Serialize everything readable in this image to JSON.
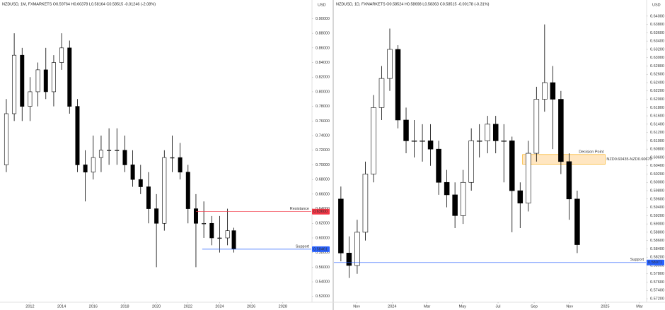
{
  "chart_data": [
    {
      "type": "candlestick",
      "title": "NZDUSD, 1M, FXMARKETS O0.59764 H0.60378 L0.58164 C0.58515 -0.01246 (-2.08%)",
      "y_label": "USD",
      "x": [
        2010.5,
        2011,
        2011.5,
        2012,
        2012.5,
        2013,
        2013.5,
        2014,
        2014.5,
        2015,
        2015.5,
        2016,
        2016.5,
        2017,
        2017.5,
        2018,
        2018.5,
        2019,
        2019.5,
        2020,
        2020.5,
        2021,
        2021.5,
        2022,
        2022.5,
        2023,
        2023.5,
        2024,
        2024.5,
        2024.9
      ],
      "open": [
        0.7,
        0.77,
        0.85,
        0.78,
        0.8,
        0.83,
        0.8,
        0.84,
        0.86,
        0.78,
        0.7,
        0.69,
        0.71,
        0.72,
        0.72,
        0.72,
        0.7,
        0.68,
        0.67,
        0.64,
        0.62,
        0.71,
        0.71,
        0.69,
        0.64,
        0.62,
        0.62,
        0.6,
        0.6,
        0.61
      ],
      "high": [
        0.79,
        0.88,
        0.86,
        0.82,
        0.84,
        0.86,
        0.85,
        0.88,
        0.87,
        0.79,
        0.72,
        0.74,
        0.74,
        0.75,
        0.75,
        0.74,
        0.72,
        0.7,
        0.69,
        0.66,
        0.72,
        0.74,
        0.73,
        0.7,
        0.66,
        0.65,
        0.63,
        0.63,
        0.64,
        0.614
      ],
      "low": [
        0.69,
        0.76,
        0.76,
        0.76,
        0.78,
        0.79,
        0.78,
        0.83,
        0.77,
        0.69,
        0.65,
        0.68,
        0.69,
        0.7,
        0.7,
        0.69,
        0.67,
        0.66,
        0.62,
        0.56,
        0.61,
        0.69,
        0.68,
        0.62,
        0.56,
        0.6,
        0.59,
        0.58,
        0.59,
        0.58
      ],
      "close": [
        0.77,
        0.85,
        0.78,
        0.8,
        0.83,
        0.8,
        0.84,
        0.86,
        0.78,
        0.7,
        0.69,
        0.71,
        0.72,
        0.72,
        0.72,
        0.7,
        0.68,
        0.67,
        0.64,
        0.62,
        0.71,
        0.71,
        0.69,
        0.64,
        0.62,
        0.62,
        0.6,
        0.6,
        0.61,
        0.585
      ],
      "up_color": "#ffffff",
      "down_color": "#000000",
      "wick_color": "#000000",
      "grid": false,
      "xlim": [
        2010.1,
        2029.8
      ],
      "ylim": [
        0.514,
        0.912
      ],
      "xticks": [
        2012,
        2014,
        2016,
        2018,
        2020,
        2022,
        2024,
        2026,
        2028
      ],
      "yticks": [
        {
          "value": 0.52,
          "label": "0.52000"
        },
        {
          "value": 0.54,
          "label": "0.54000"
        },
        {
          "value": 0.56,
          "label": "0.56000"
        },
        {
          "value": 0.58,
          "label": "0.58000"
        },
        {
          "value": 0.6,
          "label": "0.60000"
        },
        {
          "value": 0.62,
          "label": "0.62000"
        },
        {
          "value": 0.64,
          "label": "0.64000"
        },
        {
          "value": 0.66,
          "label": "0.66000"
        },
        {
          "value": 0.68,
          "label": "0.68000"
        },
        {
          "value": 0.7,
          "label": "0.70000"
        },
        {
          "value": 0.72,
          "label": "0.72000"
        },
        {
          "value": 0.74,
          "label": "0.74000"
        },
        {
          "value": 0.76,
          "label": "0.76000"
        },
        {
          "value": 0.78,
          "label": "0.78000"
        },
        {
          "value": 0.8,
          "label": "0.80000"
        },
        {
          "value": 0.82,
          "label": "0.82000"
        },
        {
          "value": 0.84,
          "label": "0.84000"
        },
        {
          "value": 0.86,
          "label": "0.86000"
        },
        {
          "value": 0.88,
          "label": "0.88000"
        },
        {
          "value": 0.9,
          "label": "0.90000"
        }
      ],
      "hlines": [
        {
          "name": "Resistance",
          "value": 0.636,
          "value_label": "0.63600",
          "color": "#f23645",
          "x_start": 2022.5
        },
        {
          "name": "Support",
          "value": 0.58461,
          "value_label": "0.58461",
          "color": "#2962ff",
          "x_start": 2022.9
        }
      ]
    },
    {
      "type": "candlestick",
      "title": "NZDUSD, 1D, FXMARKETS O0.58524 H0.58698 L0.58363 C0.58515 -0.00178 (-0.31%)",
      "y_label": "USD",
      "x": [
        4,
        18,
        32,
        46,
        60,
        74,
        88,
        102,
        116,
        130,
        144,
        158,
        172,
        186,
        200,
        214,
        228,
        242,
        256,
        270,
        284,
        298,
        312,
        326,
        340,
        354,
        368,
        382,
        396,
        410
      ],
      "open": [
        0.596,
        0.583,
        0.58,
        0.588,
        0.602,
        0.618,
        0.625,
        0.632,
        0.615,
        0.61,
        0.61,
        0.61,
        0.608,
        0.6,
        0.597,
        0.592,
        0.6,
        0.61,
        0.61,
        0.614,
        0.61,
        0.61,
        0.598,
        0.595,
        0.607,
        0.62,
        0.624,
        0.62,
        0.605,
        0.596
      ],
      "high": [
        0.599,
        0.587,
        0.591,
        0.605,
        0.621,
        0.628,
        0.637,
        0.633,
        0.618,
        0.615,
        0.614,
        0.614,
        0.61,
        0.603,
        0.6,
        0.603,
        0.613,
        0.614,
        0.616,
        0.616,
        0.614,
        0.611,
        0.6,
        0.61,
        0.623,
        0.638,
        0.628,
        0.622,
        0.607,
        0.598
      ],
      "low": [
        0.581,
        0.577,
        0.578,
        0.586,
        0.6,
        0.615,
        0.622,
        0.613,
        0.607,
        0.606,
        0.605,
        0.604,
        0.597,
        0.594,
        0.589,
        0.59,
        0.598,
        0.606,
        0.607,
        0.607,
        0.6,
        0.588,
        0.589,
        0.593,
        0.605,
        0.617,
        0.608,
        0.602,
        0.591,
        0.583
      ],
      "close": [
        0.583,
        0.58,
        0.588,
        0.602,
        0.618,
        0.625,
        0.632,
        0.615,
        0.61,
        0.61,
        0.61,
        0.608,
        0.6,
        0.597,
        0.592,
        0.6,
        0.61,
        0.61,
        0.614,
        0.61,
        0.61,
        0.598,
        0.595,
        0.607,
        0.62,
        0.624,
        0.62,
        0.605,
        0.596,
        0.585
      ],
      "up_color": "#ffffff",
      "down_color": "#000000",
      "wick_color": "#000000",
      "grid": false,
      "xlim": [
        -8,
        528
      ],
      "ylim": [
        0.5715,
        0.6415
      ],
      "xticks": [
        {
          "value": 31,
          "label": "Nov"
        },
        {
          "value": 92,
          "label": "2024"
        },
        {
          "value": 152,
          "label": "Mar"
        },
        {
          "value": 213,
          "label": "May"
        },
        {
          "value": 274,
          "label": "Jul"
        },
        {
          "value": 336,
          "label": "Sep"
        },
        {
          "value": 397,
          "label": "Nov"
        },
        {
          "value": 458,
          "label": "2025"
        },
        {
          "value": 517,
          "label": "Mar"
        }
      ],
      "yticks": [
        {
          "value": 0.572,
          "label": "0.57200"
        },
        {
          "value": 0.574,
          "label": "0.57400"
        },
        {
          "value": 0.576,
          "label": "0.57600"
        },
        {
          "value": 0.578,
          "label": "0.57800"
        },
        {
          "value": 0.58,
          "label": "0.58000"
        },
        {
          "value": 0.582,
          "label": "0.58200"
        },
        {
          "value": 0.584,
          "label": "0.58400"
        },
        {
          "value": 0.586,
          "label": "0.58600"
        },
        {
          "value": 0.588,
          "label": "0.58800"
        },
        {
          "value": 0.59,
          "label": "0.59000"
        },
        {
          "value": 0.592,
          "label": "0.59200"
        },
        {
          "value": 0.594,
          "label": "0.59400"
        },
        {
          "value": 0.596,
          "label": "0.59600"
        },
        {
          "value": 0.598,
          "label": "0.59800"
        },
        {
          "value": 0.6,
          "label": "0.60000"
        },
        {
          "value": 0.602,
          "label": "0.60200"
        },
        {
          "value": 0.604,
          "label": "0.60400"
        },
        {
          "value": 0.606,
          "label": "0.60600"
        },
        {
          "value": 0.608,
          "label": "0.60800"
        },
        {
          "value": 0.61,
          "label": "0.61000"
        },
        {
          "value": 0.612,
          "label": "0.61200"
        },
        {
          "value": 0.614,
          "label": "0.61400"
        },
        {
          "value": 0.616,
          "label": "0.61600"
        },
        {
          "value": 0.618,
          "label": "0.61800"
        },
        {
          "value": 0.62,
          "label": "0.62000"
        },
        {
          "value": 0.622,
          "label": "0.62200"
        },
        {
          "value": 0.624,
          "label": "0.62400"
        },
        {
          "value": 0.626,
          "label": "0.62600"
        },
        {
          "value": 0.628,
          "label": "0.62800"
        },
        {
          "value": 0.63,
          "label": "0.63000"
        },
        {
          "value": 0.632,
          "label": "0.63200"
        },
        {
          "value": 0.634,
          "label": "0.63400"
        },
        {
          "value": 0.636,
          "label": "0.63600"
        },
        {
          "value": 0.638,
          "label": "0.63800"
        },
        {
          "value": 0.64,
          "label": "0.64000"
        }
      ],
      "zones": [
        {
          "name": "Decision Point",
          "label": "NZD0.60435-NZD0.60670",
          "y0": 0.60435,
          "y1": 0.6067,
          "x0": 316,
          "x1": 458,
          "color": "#ffe0b2",
          "border": "#f7a600"
        }
      ],
      "hlines": [
        {
          "name": "Support",
          "value": 0.58071,
          "value_label": "0.58071",
          "color": "#2962ff",
          "x_start": -8
        }
      ]
    }
  ]
}
